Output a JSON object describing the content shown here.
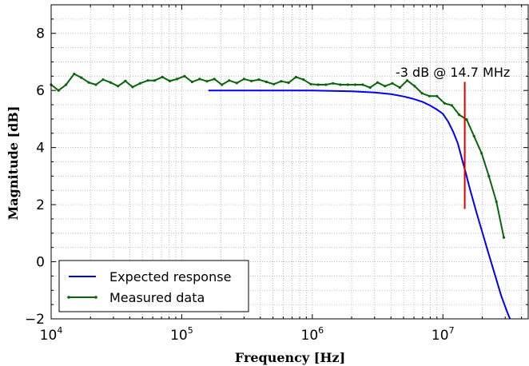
{
  "chart_data": {
    "type": "line",
    "xlabel_main": "Frequency",
    "xlabel_unit": "[Hz]",
    "ylabel_main": "Magnitude",
    "ylabel_unit": "[dB]",
    "xscale": "log",
    "xlim": [
      10000,
      45000000
    ],
    "ylim": [
      -2,
      9
    ],
    "grid": true,
    "legend_position": "bottom-left",
    "x_ticks": [
      {
        "value": 10000,
        "base": "10",
        "exp": "4"
      },
      {
        "value": 100000,
        "base": "10",
        "exp": "5"
      },
      {
        "value": 1000000,
        "base": "10",
        "exp": "6"
      },
      {
        "value": 10000000,
        "base": "10",
        "exp": "7"
      }
    ],
    "y_ticks": [
      {
        "value": -2,
        "label": "−2"
      },
      {
        "value": 0,
        "label": "0"
      },
      {
        "value": 2,
        "label": "2"
      },
      {
        "value": 4,
        "label": "4"
      },
      {
        "value": 6,
        "label": "6"
      },
      {
        "value": 8,
        "label": "8"
      }
    ],
    "series": [
      {
        "name": "Expected response",
        "color": "#0000ee",
        "markers": false,
        "points": [
          [
            160000,
            6.0
          ],
          [
            400000,
            6.0
          ],
          [
            1000000,
            6.0
          ],
          [
            2000000,
            5.97
          ],
          [
            3000000,
            5.93
          ],
          [
            4000000,
            5.87
          ],
          [
            5000000,
            5.79
          ],
          [
            6000000,
            5.7
          ],
          [
            7000000,
            5.6
          ],
          [
            8000000,
            5.47
          ],
          [
            9000000,
            5.33
          ],
          [
            10000000,
            5.18
          ],
          [
            11000000,
            4.9
          ],
          [
            12000000,
            4.55
          ],
          [
            13000000,
            4.15
          ],
          [
            14000000,
            3.6
          ],
          [
            15000000,
            3.1
          ],
          [
            16000000,
            2.6
          ],
          [
            18000000,
            1.75
          ],
          [
            20000000,
            1.05
          ],
          [
            22000000,
            0.4
          ],
          [
            25000000,
            -0.45
          ],
          [
            28000000,
            -1.2
          ],
          [
            31000000,
            -1.75
          ],
          [
            34000000,
            -2.2
          ]
        ]
      },
      {
        "name": "Measured data",
        "color": "#0a640a",
        "markers": true,
        "points": [
          [
            10000,
            6.2
          ],
          [
            11400,
            6.0
          ],
          [
            13000,
            6.2
          ],
          [
            15000,
            6.58
          ],
          [
            17000,
            6.45
          ],
          [
            19400,
            6.28
          ],
          [
            22000,
            6.2
          ],
          [
            25000,
            6.38
          ],
          [
            28500,
            6.28
          ],
          [
            32500,
            6.15
          ],
          [
            37000,
            6.33
          ],
          [
            42000,
            6.12
          ],
          [
            48000,
            6.25
          ],
          [
            55000,
            6.35
          ],
          [
            62000,
            6.35
          ],
          [
            71000,
            6.47
          ],
          [
            81000,
            6.33
          ],
          [
            92000,
            6.4
          ],
          [
            105000,
            6.5
          ],
          [
            120000,
            6.3
          ],
          [
            137000,
            6.4
          ],
          [
            156000,
            6.32
          ],
          [
            178000,
            6.4
          ],
          [
            203000,
            6.2
          ],
          [
            231000,
            6.35
          ],
          [
            264000,
            6.26
          ],
          [
            300000,
            6.4
          ],
          [
            342000,
            6.33
          ],
          [
            390000,
            6.38
          ],
          [
            445000,
            6.3
          ],
          [
            507000,
            6.22
          ],
          [
            578000,
            6.32
          ],
          [
            658000,
            6.27
          ],
          [
            750000,
            6.47
          ],
          [
            855000,
            6.38
          ],
          [
            975000,
            6.22
          ],
          [
            1110000,
            6.2
          ],
          [
            1270000,
            6.2
          ],
          [
            1440000,
            6.25
          ],
          [
            1640000,
            6.2
          ],
          [
            1870000,
            6.2
          ],
          [
            2130000,
            6.2
          ],
          [
            2430000,
            6.2
          ],
          [
            2770000,
            6.1
          ],
          [
            3160000,
            6.28
          ],
          [
            3600000,
            6.15
          ],
          [
            4100000,
            6.25
          ],
          [
            4680000,
            6.1
          ],
          [
            5330000,
            6.35
          ],
          [
            6080000,
            6.15
          ],
          [
            6930000,
            5.9
          ],
          [
            7900000,
            5.8
          ],
          [
            9000000,
            5.8
          ],
          [
            10300000,
            5.55
          ],
          [
            11700000,
            5.48
          ],
          [
            13300000,
            5.15
          ],
          [
            15200000,
            4.98
          ],
          [
            17300000,
            4.4
          ],
          [
            19800000,
            3.8
          ],
          [
            22500000,
            3.0
          ],
          [
            25700000,
            2.1
          ],
          [
            29300000,
            0.85
          ]
        ]
      }
    ],
    "marker_line": {
      "x": 14700000,
      "y_from": 1.85,
      "y_to": 6.3,
      "color": "#e00000"
    },
    "annotation": "-3 dB @ 14.7 MHz",
    "legend": [
      {
        "label": "Expected response"
      },
      {
        "label": "Measured data"
      }
    ]
  }
}
